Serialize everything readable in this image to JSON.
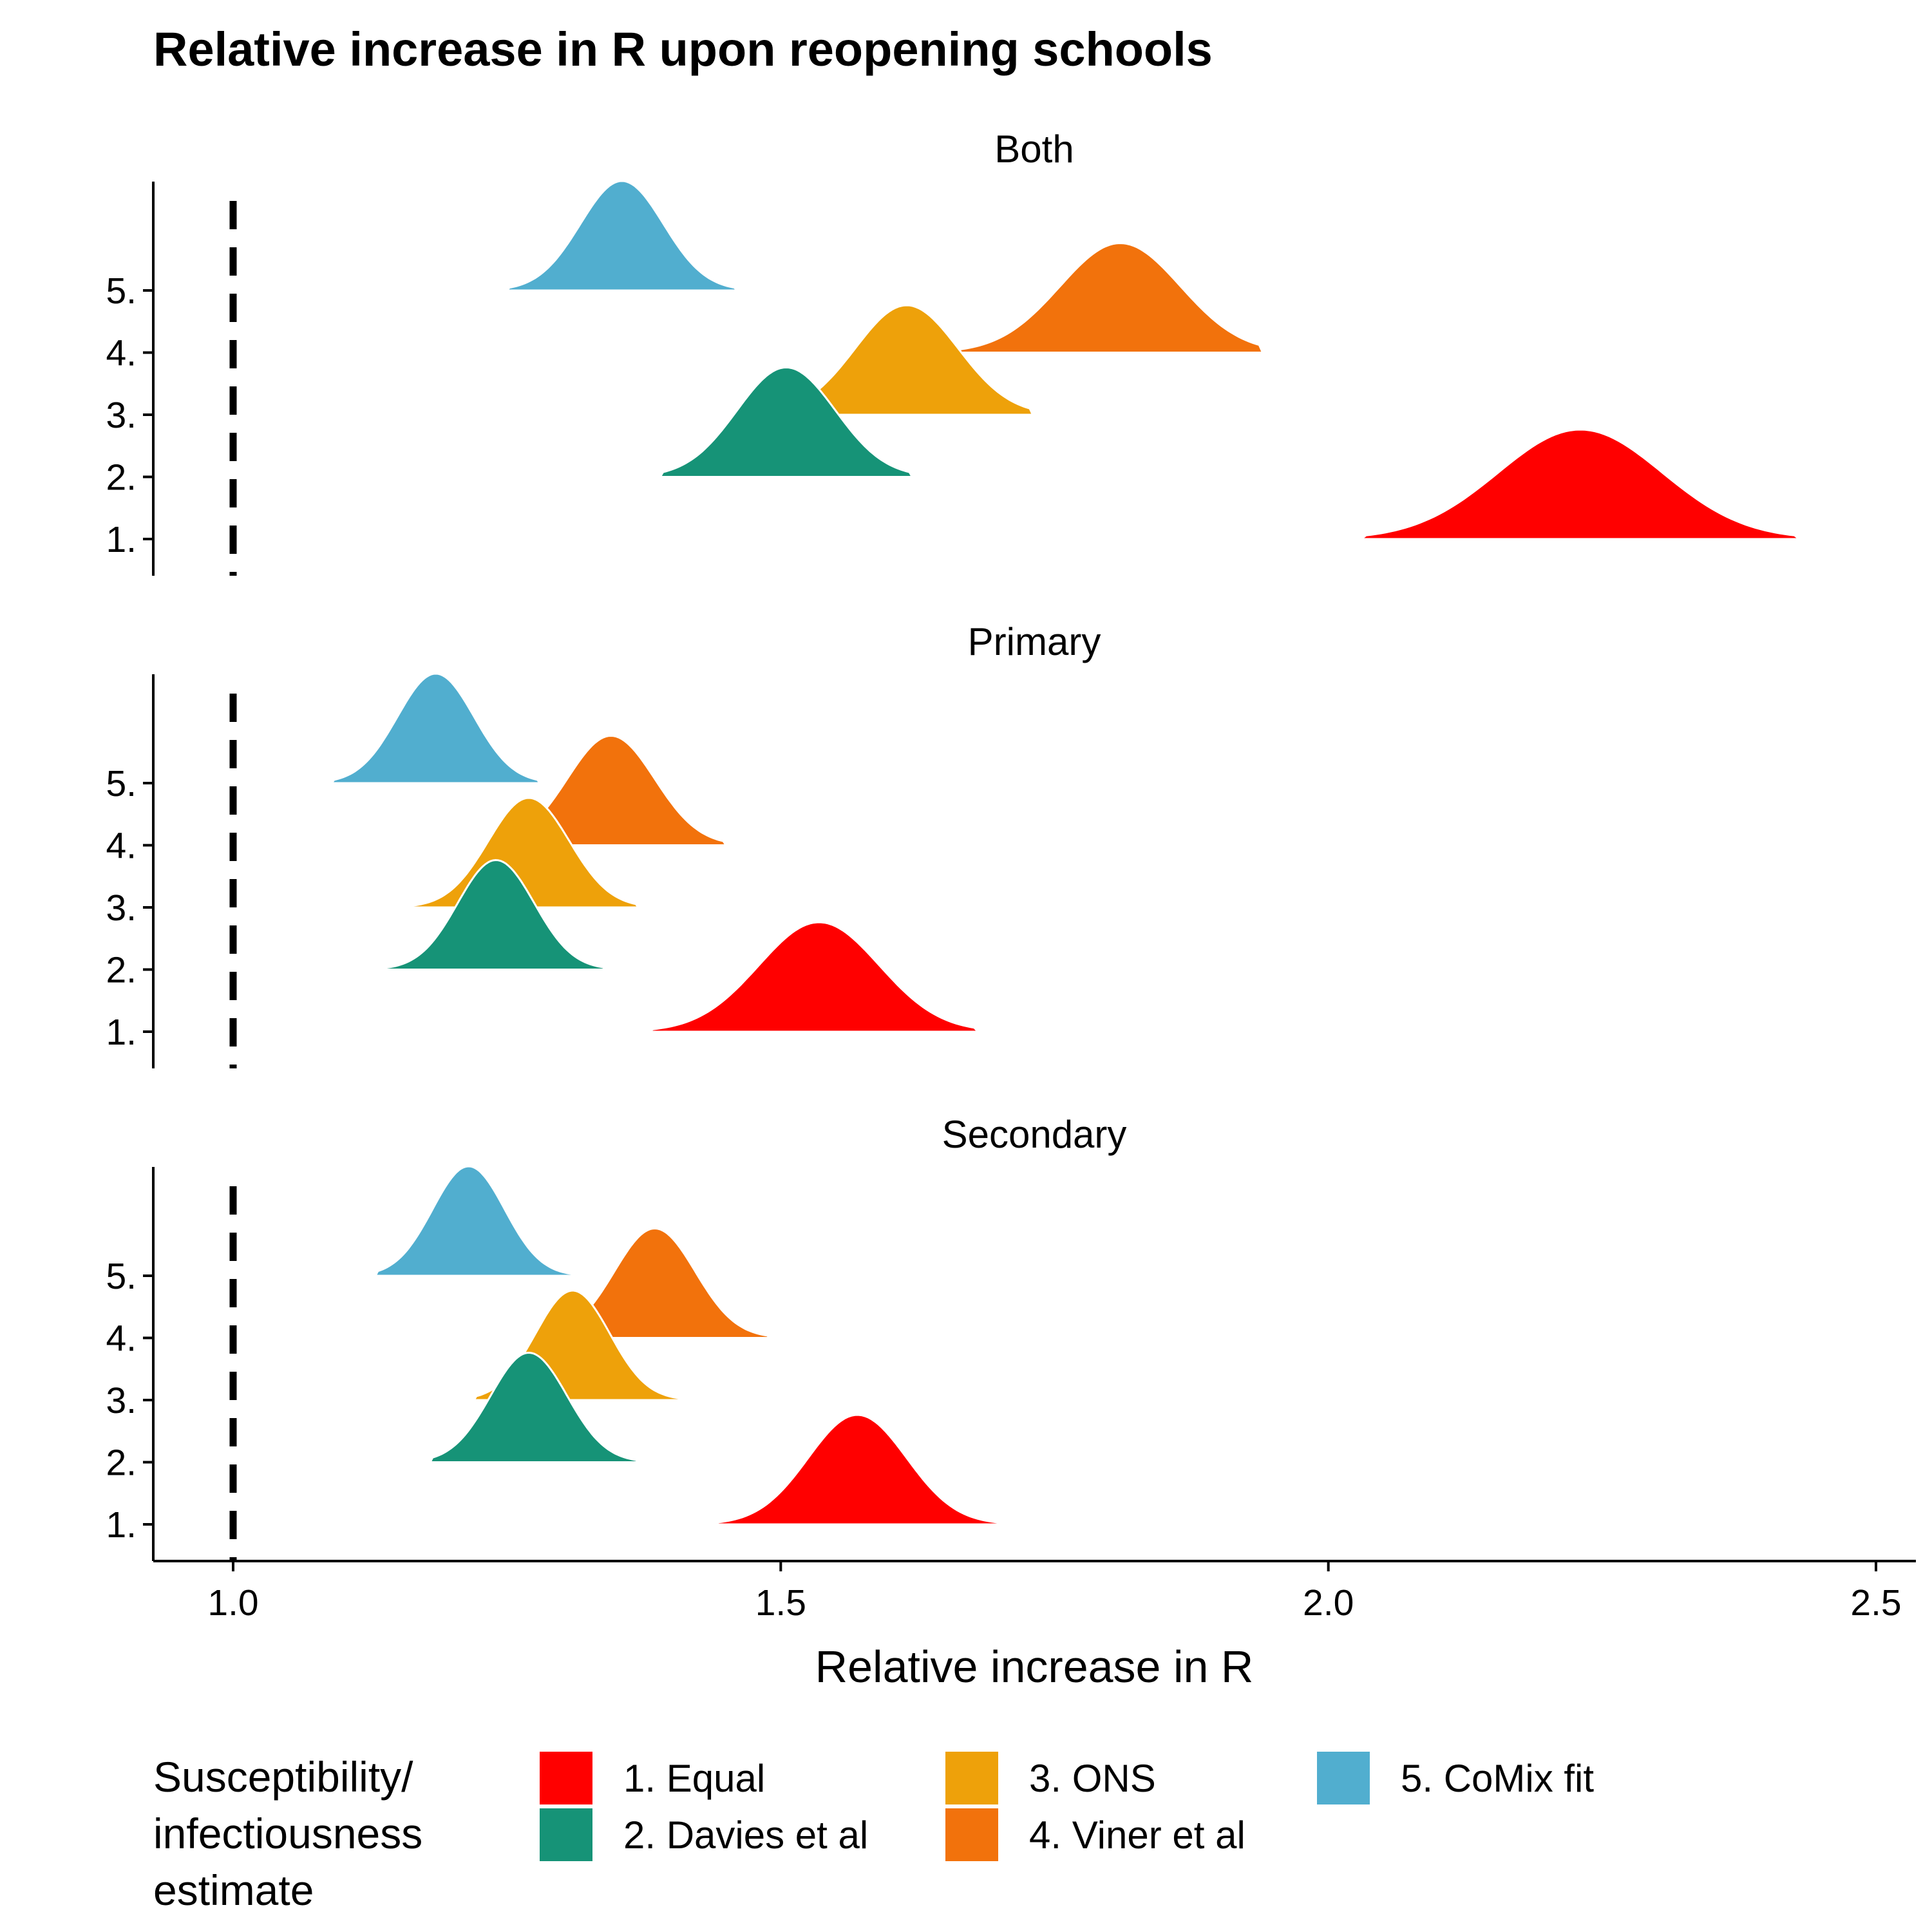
{
  "chart_data": {
    "type": "ridgeline",
    "title": "Relative increase in R upon reopening schools",
    "xlabel": "Relative increase in R",
    "ylabel": "",
    "xlim": [
      0.93,
      2.53
    ],
    "x_ticks": [
      "1.0",
      "1.5",
      "2.0",
      "2.5"
    ],
    "y_ticks": [
      "1.",
      "2.",
      "3.",
      "4.",
      "5."
    ],
    "reference_line": {
      "x": 1.0,
      "style": "dashed"
    },
    "legend": {
      "title_lines": [
        "Susceptibility/",
        "infectiousness",
        "estimate"
      ],
      "placement": "bottom"
    },
    "series": [
      {
        "name": "1. Equal",
        "color": "#FF0000"
      },
      {
        "name": "2. Davies et al",
        "color": "#169377"
      },
      {
        "name": "3. ONS",
        "color": "#EEA10A"
      },
      {
        "name": "4. Viner et al",
        "color": "#F2720C"
      },
      {
        "name": "5. CoMix fit",
        "color": "#51AECF"
      }
    ],
    "panels": [
      {
        "label": "Both",
        "distributions": [
          {
            "series": 0,
            "mean": 2.23,
            "sd": 0.075,
            "min": 2.03,
            "max": 2.43
          },
          {
            "series": 1,
            "mean": 1.505,
            "sd": 0.045,
            "min": 1.39,
            "max": 1.62
          },
          {
            "series": 2,
            "mean": 1.615,
            "sd": 0.047,
            "min": 1.49,
            "max": 1.73
          },
          {
            "series": 3,
            "mean": 1.81,
            "sd": 0.055,
            "min": 1.66,
            "max": 1.94
          },
          {
            "series": 4,
            "mean": 1.355,
            "sd": 0.038,
            "min": 1.25,
            "max": 1.46
          }
        ]
      },
      {
        "label": "Primary",
        "distributions": [
          {
            "series": 0,
            "mean": 1.535,
            "sd": 0.055,
            "min": 1.38,
            "max": 1.68
          },
          {
            "series": 1,
            "mean": 1.24,
            "sd": 0.035,
            "min": 1.13,
            "max": 1.34
          },
          {
            "series": 2,
            "mean": 1.27,
            "sd": 0.037,
            "min": 1.16,
            "max": 1.37
          },
          {
            "series": 3,
            "mean": 1.345,
            "sd": 0.04,
            "min": 1.23,
            "max": 1.45
          },
          {
            "series": 4,
            "mean": 1.185,
            "sd": 0.035,
            "min": 1.09,
            "max": 1.28
          }
        ]
      },
      {
        "label": "Secondary",
        "distributions": [
          {
            "series": 0,
            "mean": 1.57,
            "sd": 0.045,
            "min": 1.44,
            "max": 1.72
          },
          {
            "series": 1,
            "mean": 1.27,
            "sd": 0.035,
            "min": 1.18,
            "max": 1.37
          },
          {
            "series": 2,
            "mean": 1.31,
            "sd": 0.034,
            "min": 1.22,
            "max": 1.41
          },
          {
            "series": 3,
            "mean": 1.385,
            "sd": 0.037,
            "min": 1.29,
            "max": 1.49
          },
          {
            "series": 4,
            "mean": 1.215,
            "sd": 0.033,
            "min": 1.13,
            "max": 1.32
          }
        ]
      }
    ]
  }
}
